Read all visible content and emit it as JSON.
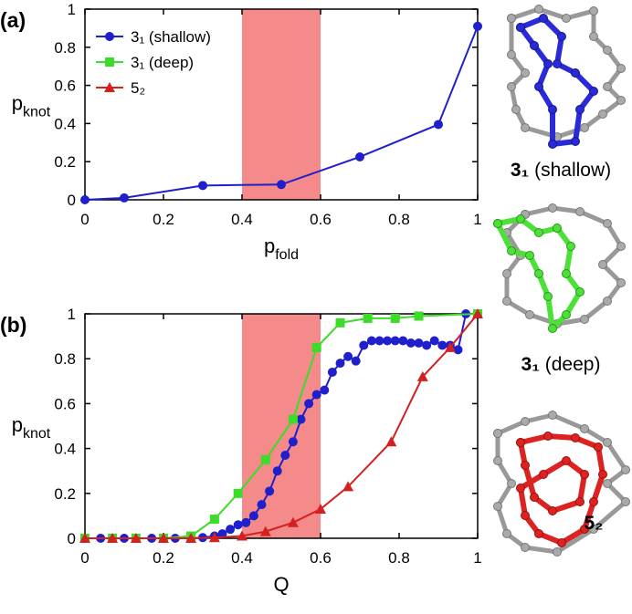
{
  "chart_data": [
    {
      "type": "line",
      "label": "(a)",
      "ylabel": [
        "p",
        "knot"
      ],
      "xlabel": [
        "p",
        "fold"
      ],
      "xlim": [
        0,
        1
      ],
      "ylim": [
        0,
        1
      ],
      "xticks": [
        0,
        0.2,
        0.4,
        0.6,
        0.8,
        1
      ],
      "yticks": [
        0,
        0.2,
        0.4,
        0.6,
        0.8,
        1
      ],
      "highlight": [
        0.4,
        0.6
      ],
      "highlight_color": "#f58a8a",
      "grid": false,
      "legend": "upper left",
      "series": [
        {
          "color": "#1f1fcc",
          "marker": "circle",
          "x": [
            0,
            0.1,
            0.3,
            0.5,
            0.7,
            0.9,
            1
          ],
          "values": [
            0,
            0.01,
            0.075,
            0.08,
            0.225,
            0.395,
            0.91
          ]
        }
      ]
    },
    {
      "type": "line",
      "label": "(b)",
      "ylabel": [
        "p",
        "knot"
      ],
      "xlabel": [
        "Q"
      ],
      "xlim": [
        0,
        1
      ],
      "ylim": [
        0,
        1
      ],
      "xticks": [
        0,
        0.2,
        0.4,
        0.6,
        0.8,
        1
      ],
      "yticks": [
        0,
        0.2,
        0.4,
        0.6,
        0.8,
        1
      ],
      "highlight": [
        0.4,
        0.6
      ],
      "highlight_color": "#f58a8a",
      "grid": false,
      "series": [
        {
          "name": "3₁ (shallow)",
          "color": "#1f1fcc",
          "marker": "circle",
          "x": [
            0.04,
            0.07,
            0.1,
            0.13,
            0.17,
            0.2,
            0.23,
            0.27,
            0.3,
            0.33,
            0.35,
            0.37,
            0.39,
            0.41,
            0.43,
            0.45,
            0.47,
            0.49,
            0.51,
            0.53,
            0.55,
            0.57,
            0.59,
            0.61,
            0.63,
            0.65,
            0.67,
            0.69,
            0.71,
            0.73,
            0.75,
            0.77,
            0.79,
            0.81,
            0.83,
            0.85,
            0.87,
            0.89,
            0.91,
            0.93,
            0.95,
            0.97,
            1
          ],
          "values": [
            0,
            0,
            0,
            0,
            0,
            0,
            0,
            0,
            0.003,
            0.01,
            0.02,
            0.04,
            0.06,
            0.07,
            0.1,
            0.15,
            0.21,
            0.3,
            0.37,
            0.43,
            0.53,
            0.6,
            0.64,
            0.66,
            0.74,
            0.78,
            0.81,
            0.79,
            0.86,
            0.88,
            0.88,
            0.88,
            0.88,
            0.88,
            0.87,
            0.87,
            0.86,
            0.88,
            0.86,
            0.86,
            0.84,
            1,
            1
          ]
        },
        {
          "name": "3₁ (deep)",
          "color": "#3ddc2a",
          "marker": "square",
          "x": [
            0,
            0.07,
            0.13,
            0.2,
            0.27,
            0.33,
            0.39,
            0.46,
            0.53,
            0.59,
            0.65,
            0.72,
            0.79,
            0.85,
            1
          ],
          "values": [
            0,
            0,
            0,
            0,
            0.01,
            0.085,
            0.2,
            0.35,
            0.53,
            0.85,
            0.96,
            0.98,
            0.98,
            0.99,
            1
          ]
        },
        {
          "name": "5₂",
          "color": "#d42020",
          "marker": "triangle",
          "x": [
            0,
            0.07,
            0.13,
            0.2,
            0.27,
            0.33,
            0.4,
            0.46,
            0.53,
            0.6,
            0.67,
            0.78,
            0.86,
            0.93,
            1
          ],
          "values": [
            0,
            0,
            0,
            0,
            0,
            0.003,
            0.01,
            0.03,
            0.07,
            0.13,
            0.23,
            0.43,
            0.72,
            0.85,
            1
          ]
        }
      ]
    }
  ],
  "structures": [
    {
      "name": "3₁",
      "note": "(shallow)"
    },
    {
      "name": "3₁",
      "note": "(deep)"
    },
    {
      "name": "5₂"
    }
  ]
}
